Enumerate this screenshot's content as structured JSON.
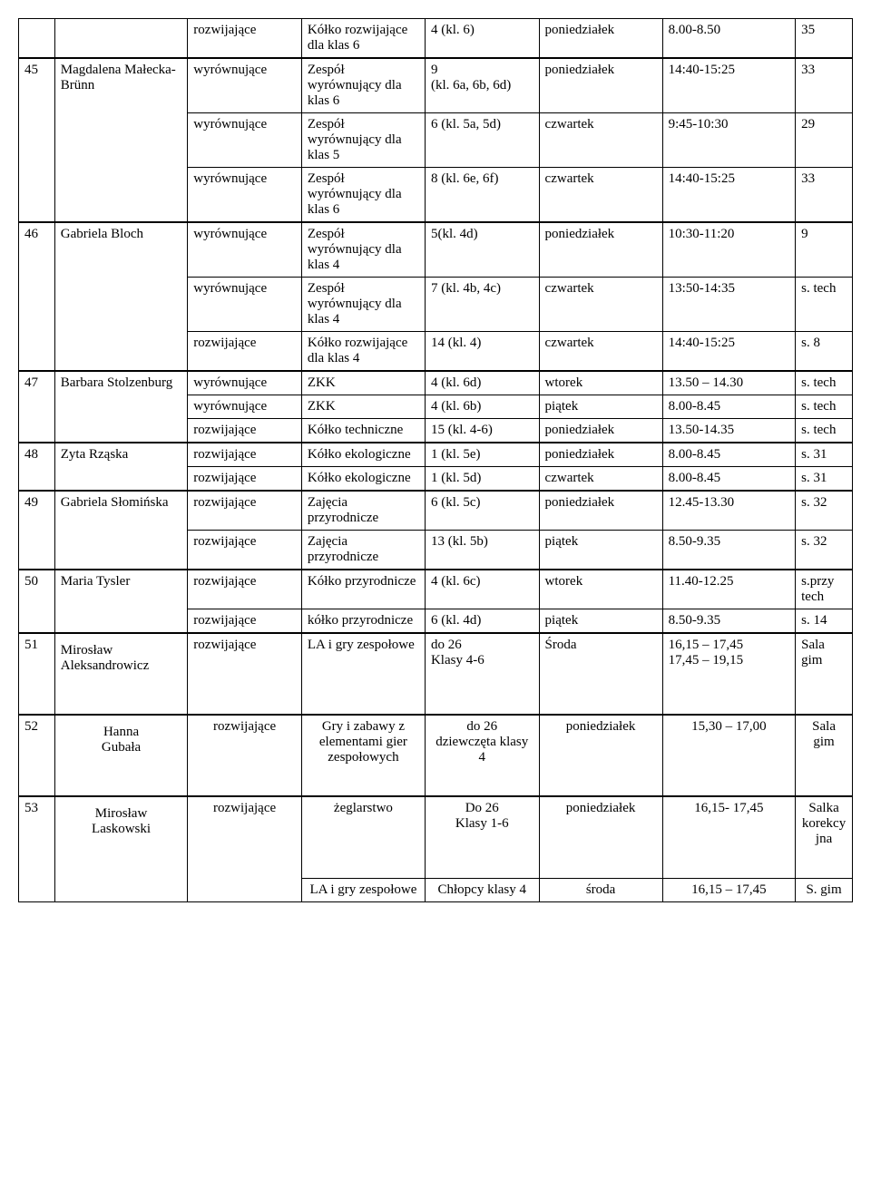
{
  "rows": [
    {
      "num": "",
      "name": "",
      "type": "rozwijające",
      "act": "Kółko rozwijające dla klas 6",
      "group": "4 (kl. 6)",
      "day": "poniedziałek",
      "time": "8.00-8.50",
      "room": "35",
      "thick": false,
      "rowspanNum": 1,
      "rowspanName": 1
    },
    {
      "num": "45",
      "name": "Magdalena Małecka-Brünn",
      "type": "wyrównujące",
      "act": "Zespół wyrównujący dla klas 6",
      "group": "9\n(kl. 6a, 6b, 6d)",
      "day": "poniedziałek",
      "time": "14:40-15:25",
      "room": "33",
      "thick": true,
      "rowspanNum": 3,
      "rowspanName": 3
    },
    {
      "num": null,
      "name": null,
      "type": "wyrównujące",
      "act": "Zespół wyrównujący dla klas 5",
      "group": "6 (kl. 5a, 5d)",
      "day": "czwartek",
      "time": "9:45-10:30",
      "room": "29",
      "thick": false
    },
    {
      "num": null,
      "name": null,
      "type": "wyrównujące",
      "act": "Zespół wyrównujący dla klas 6",
      "group": "8 (kl. 6e, 6f)",
      "day": "czwartek",
      "time": "14:40-15:25",
      "room": "33",
      "thick": false
    },
    {
      "num": "46",
      "name": "Gabriela Bloch",
      "type": "wyrównujące",
      "act": "Zespół wyrównujący dla klas 4",
      "group": "5(kl. 4d)",
      "day": "poniedziałek",
      "time": "10:30-11:20",
      "room": "9",
      "thick": true,
      "rowspanNum": 3,
      "rowspanName": 3
    },
    {
      "num": null,
      "name": null,
      "type": "wyrównujące",
      "act": "Zespół wyrównujący dla klas 4",
      "group": "7 (kl. 4b, 4c)",
      "day": "czwartek",
      "time": "13:50-14:35",
      "room": "s. tech",
      "thick": false
    },
    {
      "num": null,
      "name": null,
      "type": "rozwijające",
      "act": "Kółko rozwijające dla klas 4",
      "group": "14 (kl. 4)",
      "day": "czwartek",
      "time": "14:40-15:25",
      "room": "s. 8",
      "thick": false
    },
    {
      "num": "47",
      "name": "Barbara Stolzenburg",
      "type": "wyrównujące",
      "act": "ZKK",
      "group": "4 (kl. 6d)",
      "day": "wtorek",
      "time": "13.50 – 14.30",
      "room": "s. tech",
      "thick": true,
      "rowspanNum": 3,
      "rowspanName": 3
    },
    {
      "num": null,
      "name": null,
      "type": "wyrównujące",
      "act": "ZKK",
      "group": "4 (kl. 6b)",
      "day": "piątek",
      "time": "8.00-8.45",
      "room": "s. tech",
      "thick": false
    },
    {
      "num": null,
      "name": null,
      "type": "rozwijające",
      "act": "Kółko techniczne",
      "group": "15 (kl. 4-6)",
      "day": "poniedziałek",
      "time": "13.50-14.35",
      "room": "s. tech",
      "thick": false
    },
    {
      "num": "48",
      "name": "Zyta Rząska",
      "type": "rozwijające",
      "act": "Kółko ekologiczne",
      "group": "1 (kl. 5e)",
      "day": "poniedziałek",
      "time": "8.00-8.45",
      "room": "s. 31",
      "thick": true,
      "rowspanNum": 2,
      "rowspanName": 2
    },
    {
      "num": null,
      "name": null,
      "type": "rozwijające",
      "act": "Kółko ekologiczne",
      "group": "1 (kl. 5d)",
      "day": "czwartek",
      "time": "8.00-8.45",
      "room": "s. 31",
      "thick": false
    },
    {
      "num": "49",
      "name": "Gabriela Słomińska",
      "type": "rozwijające",
      "act": "Zajęcia przyrodnicze",
      "group": "6 (kl. 5c)",
      "day": "poniedziałek",
      "time": "12.45-13.30",
      "room": "s. 32",
      "thick": true,
      "rowspanNum": 2,
      "rowspanName": 2
    },
    {
      "num": null,
      "name": null,
      "type": "rozwijające",
      "act": "Zajęcia przyrodnicze",
      "group": "13 (kl. 5b)",
      "day": "piątek",
      "time": "8.50-9.35",
      "room": "s. 32",
      "thick": false
    },
    {
      "num": "50",
      "name": "Maria Tysler",
      "type": "rozwijające",
      "act": "Kółko przyrodnicze",
      "group": "4  (kl. 6c)",
      "day": "wtorek",
      "time": "11.40-12.25",
      "room": "s.przy tech",
      "thick": true,
      "rowspanNum": 2,
      "rowspanName": 2
    },
    {
      "num": null,
      "name": null,
      "type": "rozwijające",
      "act": "kółko przyrodnicze",
      "group": "6 (kl. 4d)",
      "day": "piątek",
      "time": "8.50-9.35",
      "room": "s. 14",
      "thick": false
    },
    {
      "num": "51",
      "name": "Mirosław\nAleksandrowicz",
      "type": "rozwijające",
      "act": "LA i gry zespołowe",
      "group": "do 26\nKlasy 4-6",
      "day": "Środa",
      "time": "16,15 – 17,45\n17,45 – 19,15",
      "room": "Sala gim",
      "thick": true,
      "rowspanNum": 1,
      "rowspanName": 1,
      "tall": true
    },
    {
      "num": "52",
      "name": "Hanna\nGubała",
      "type": "rozwijające",
      "act": "Gry i zabawy z elementami gier zespołowych",
      "group": "do 26\ndziewczęta klasy 4",
      "day": "poniedziałek",
      "time": "15,30 – 17,00",
      "room": "Sala gim",
      "thick": true,
      "rowspanNum": 1,
      "rowspanName": 1,
      "center": true,
      "tall": true
    },
    {
      "num": "53",
      "name": "Mirosław\nLaskowski",
      "type": "rozwijające",
      "act": "żeglarstwo",
      "group": "Do 26\nKlasy 1-6",
      "day": "poniedziałek",
      "time": "16,15- 17,45",
      "room": "Salka korekcyjna",
      "thick": true,
      "rowspanNum": 2,
      "rowspanName": 2,
      "rowspanType": 2,
      "center": true,
      "tall": true
    },
    {
      "num": null,
      "name": null,
      "type": null,
      "act": "LA i gry zespołowe",
      "group": "Chłopcy klasy 4",
      "day": "środa",
      "time": "16,15 – 17,45",
      "room": "S. gim",
      "thick": false,
      "center": true
    }
  ]
}
